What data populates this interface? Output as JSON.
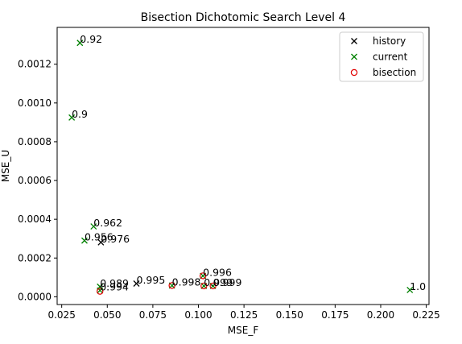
{
  "chart_data": {
    "type": "scatter",
    "title": "Bisection Dichotomic Search Level 4",
    "xlabel": "MSE_F",
    "ylabel": "MSE_U",
    "xlim": [
      0.0225,
      0.2265
    ],
    "ylim": [
      -4e-05,
      0.00139
    ],
    "xticks": [
      {
        "value": 0.025,
        "label": "0.025"
      },
      {
        "value": 0.05,
        "label": "0.050"
      },
      {
        "value": 0.075,
        "label": "0.075"
      },
      {
        "value": 0.1,
        "label": "0.100"
      },
      {
        "value": 0.125,
        "label": "0.125"
      },
      {
        "value": 0.15,
        "label": "0.150"
      },
      {
        "value": 0.175,
        "label": "0.175"
      },
      {
        "value": 0.2,
        "label": "0.200"
      },
      {
        "value": 0.225,
        "label": "0.225"
      }
    ],
    "yticks": [
      {
        "value": 0.0,
        "label": "0.0000"
      },
      {
        "value": 0.0002,
        "label": "0.0002"
      },
      {
        "value": 0.0004,
        "label": "0.0004"
      },
      {
        "value": 0.0006,
        "label": "0.0006"
      },
      {
        "value": 0.0008,
        "label": "0.0008"
      },
      {
        "value": 0.001,
        "label": "0.0010"
      },
      {
        "value": 0.0012,
        "label": "0.0012"
      }
    ],
    "grid": false,
    "legend": {
      "placement": "top-right",
      "entries": [
        {
          "name": "history",
          "marker": "x",
          "color": "#000000"
        },
        {
          "name": "current",
          "marker": "x",
          "color": "#008000"
        },
        {
          "name": "bisection",
          "marker": "o",
          "color": "#e00000"
        }
      ]
    },
    "series": [
      {
        "name": "history",
        "marker": "x",
        "color": "#000000",
        "points": [
          {
            "x": 0.0465,
            "y": 0.000281
          },
          {
            "x": 0.066,
            "y": 6.8e-05
          }
        ]
      },
      {
        "name": "current",
        "marker": "x",
        "color": "#008000",
        "points": [
          {
            "x": 0.035,
            "y": 0.00131
          },
          {
            "x": 0.0305,
            "y": 0.000925
          },
          {
            "x": 0.0425,
            "y": 0.000363
          },
          {
            "x": 0.0375,
            "y": 0.00029
          },
          {
            "x": 0.046,
            "y": 5.2e-05
          },
          {
            "x": 0.046,
            "y": 3.3e-05
          },
          {
            "x": 0.0855,
            "y": 5.8e-05
          },
          {
            "x": 0.1025,
            "y": 0.000108
          },
          {
            "x": 0.103,
            "y": 5.6e-05
          },
          {
            "x": 0.108,
            "y": 5.6e-05
          },
          {
            "x": 0.216,
            "y": 3.5e-05
          }
        ]
      },
      {
        "name": "bisection",
        "marker": "o",
        "color": "#e00000",
        "points": [
          {
            "x": 0.046,
            "y": 2.8e-05
          },
          {
            "x": 0.0855,
            "y": 5.8e-05
          },
          {
            "x": 0.1025,
            "y": 0.000108
          },
          {
            "x": 0.103,
            "y": 5.6e-05
          },
          {
            "x": 0.108,
            "y": 5.6e-05
          }
        ]
      }
    ],
    "annotations": [
      {
        "text": "0.92",
        "x": 0.035,
        "y": 0.00131
      },
      {
        "text": "0.9",
        "x": 0.0305,
        "y": 0.000925
      },
      {
        "text": "0.962",
        "x": 0.0425,
        "y": 0.000363
      },
      {
        "text": "0.956",
        "x": 0.0375,
        "y": 0.00029
      },
      {
        "text": "0.976",
        "x": 0.0465,
        "y": 0.000281
      },
      {
        "text": "0.989",
        "x": 0.046,
        "y": 5.2e-05
      },
      {
        "text": "0.994",
        "x": 0.046,
        "y": 3.3e-05
      },
      {
        "text": "0.995",
        "x": 0.066,
        "y": 6.8e-05
      },
      {
        "text": "0.998",
        "x": 0.0855,
        "y": 5.8e-05
      },
      {
        "text": "0.996",
        "x": 0.1025,
        "y": 0.000108
      },
      {
        "text": "0.999",
        "x": 0.103,
        "y": 5.6e-05
      },
      {
        "text": "0.999",
        "x": 0.108,
        "y": 5.6e-05
      },
      {
        "text": "1.0",
        "x": 0.216,
        "y": 3.5e-05
      }
    ]
  }
}
